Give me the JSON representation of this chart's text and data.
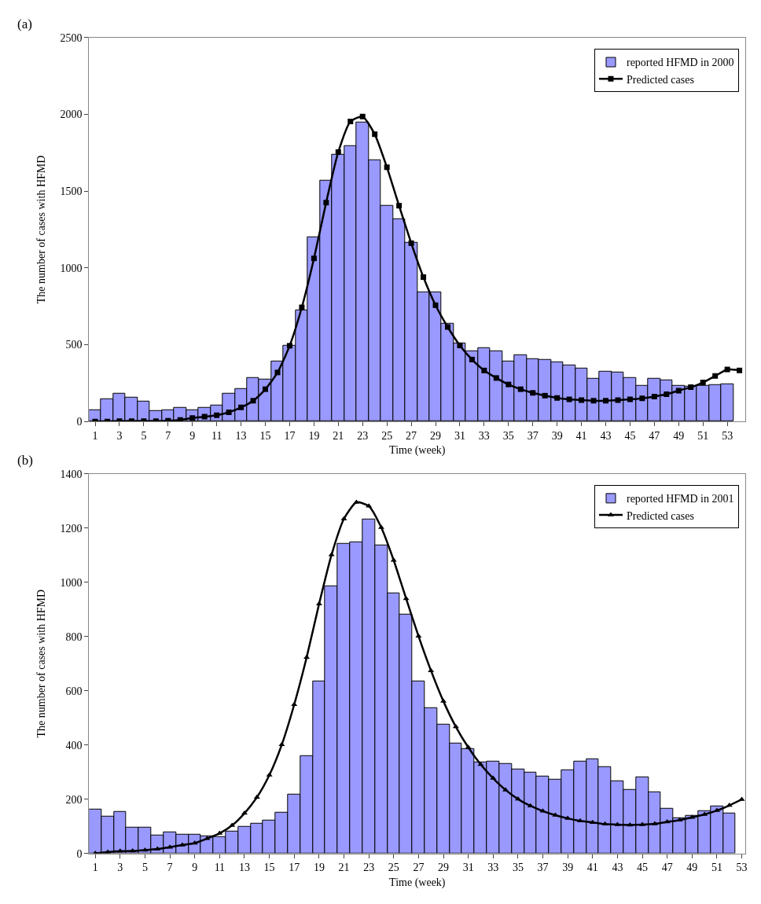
{
  "chart_data": [
    {
      "type": "bar",
      "title": "(a)",
      "xlabel": "Time (week)",
      "ylabel": "The number of cases with HFMD",
      "xlim": [
        0.5,
        54.5
      ],
      "xticks": [
        1,
        3,
        5,
        7,
        9,
        11,
        13,
        15,
        17,
        19,
        21,
        23,
        25,
        27,
        29,
        31,
        33,
        35,
        37,
        39,
        41,
        43,
        45,
        47,
        49,
        51,
        53
      ],
      "ylim": [
        0,
        2500
      ],
      "yticks": [
        0,
        500,
        1000,
        1500,
        2000,
        2500
      ],
      "legend": "top right",
      "series": [
        {
          "name": "reported HFMD in 2000",
          "color": "#9999ff",
          "x": [
            1,
            2,
            3,
            4,
            5,
            6,
            7,
            8,
            9,
            10,
            11,
            12,
            13,
            14,
            15,
            16,
            17,
            18,
            19,
            20,
            21,
            22,
            23,
            24,
            25,
            26,
            27,
            28,
            29,
            30,
            31,
            32,
            33,
            34,
            35,
            36,
            37,
            38,
            39,
            40,
            41,
            42,
            43,
            44,
            45,
            46,
            47,
            48,
            49,
            50,
            51,
            52,
            53
          ],
          "values": [
            75,
            146,
            179,
            155,
            130,
            69,
            73,
            91,
            73,
            91,
            106,
            179,
            212,
            285,
            274,
            389,
            495,
            726,
            1201,
            1569,
            1739,
            1792,
            1949,
            1704,
            1407,
            1319,
            1162,
            839,
            839,
            635,
            507,
            458,
            478,
            456,
            391,
            431,
            409,
            403,
            385,
            363,
            345,
            276,
            323,
            318,
            283,
            230,
            281,
            266,
            232,
            228,
            234,
            239,
            245
          ]
        },
        {
          "name": "Predicted cases",
          "type": "line",
          "color": "#000000",
          "marker": "square",
          "x": [
            1,
            2,
            3,
            4,
            5,
            6,
            7,
            8,
            9,
            10,
            11,
            12,
            13,
            14,
            15,
            16,
            17,
            18,
            19,
            20,
            21,
            22,
            23,
            24,
            25,
            26,
            27,
            28,
            29,
            30,
            31,
            32,
            33,
            34,
            35,
            36,
            37,
            38,
            39,
            40,
            41,
            42,
            43,
            44,
            45,
            46,
            47,
            48,
            49,
            50,
            51,
            52,
            53,
            54
          ],
          "values": [
            0,
            0,
            2,
            2,
            2,
            2,
            5,
            10,
            22,
            31,
            40,
            60,
            91,
            135,
            210,
            319,
            493,
            743,
            1062,
            1425,
            1754,
            1953,
            1985,
            1870,
            1655,
            1405,
            1161,
            940,
            757,
            615,
            495,
            403,
            332,
            283,
            241,
            210,
            186,
            168,
            153,
            144,
            139,
            135,
            135,
            139,
            144,
            151,
            162,
            177,
            201,
            223,
            254,
            296,
            339,
            332
          ]
        }
      ]
    },
    {
      "type": "bar",
      "title": "(b)",
      "xlabel": "Time (week)",
      "ylabel": "The number of cases with HFMD",
      "xlim": [
        0.5,
        53.3
      ],
      "xticks": [
        1,
        3,
        5,
        7,
        9,
        11,
        13,
        15,
        17,
        19,
        21,
        23,
        25,
        27,
        29,
        31,
        33,
        35,
        37,
        39,
        41,
        43,
        45,
        47,
        49,
        51,
        53
      ],
      "ylim": [
        0,
        1400
      ],
      "yticks": [
        0,
        200,
        400,
        600,
        800,
        1000,
        1200,
        1400
      ],
      "legend": "top right",
      "series": [
        {
          "name": "reported HFMD in 2001",
          "color": "#9999ff",
          "x": [
            1,
            2,
            3,
            4,
            5,
            6,
            7,
            8,
            9,
            10,
            11,
            12,
            13,
            14,
            15,
            16,
            17,
            18,
            19,
            20,
            21,
            22,
            23,
            24,
            25,
            26,
            27,
            28,
            29,
            30,
            31,
            32,
            33,
            34,
            35,
            36,
            37,
            38,
            39,
            40,
            41,
            42,
            43,
            44,
            45,
            46,
            47,
            48,
            49,
            50,
            51,
            52
          ],
          "values": [
            162,
            137,
            154,
            95,
            95,
            66,
            78,
            70,
            70,
            64,
            60,
            82,
            98,
            111,
            120,
            150,
            217,
            358,
            634,
            985,
            1143,
            1148,
            1232,
            1136,
            958,
            882,
            636,
            535,
            476,
            406,
            385,
            337,
            339,
            331,
            310,
            297,
            284,
            272,
            306,
            339,
            348,
            319,
            266,
            234,
            282,
            226,
            164,
            131,
            140,
            155,
            173,
            148
          ]
        },
        {
          "name": "Predicted cases",
          "type": "line",
          "color": "#000000",
          "marker": "triangle",
          "x": [
            1,
            2,
            3,
            4,
            5,
            6,
            7,
            8,
            9,
            10,
            11,
            12,
            13,
            14,
            15,
            16,
            17,
            18,
            19,
            20,
            21,
            22,
            23,
            24,
            25,
            26,
            27,
            28,
            29,
            30,
            31,
            32,
            33,
            34,
            35,
            36,
            37,
            38,
            39,
            40,
            41,
            42,
            43,
            44,
            45,
            46,
            47,
            48,
            49,
            50,
            51,
            52,
            53
          ],
          "values": [
            0,
            5,
            8,
            9,
            12,
            16,
            23,
            31,
            38,
            55,
            74,
            103,
            148,
            207,
            289,
            401,
            549,
            723,
            920,
            1101,
            1234,
            1295,
            1281,
            1202,
            1081,
            940,
            801,
            674,
            561,
            467,
            391,
            328,
            277,
            234,
            200,
            175,
            156,
            141,
            129,
            120,
            114,
            108,
            106,
            105,
            106,
            109,
            116,
            123,
            133,
            144,
            158,
            177,
            199
          ]
        }
      ]
    }
  ]
}
